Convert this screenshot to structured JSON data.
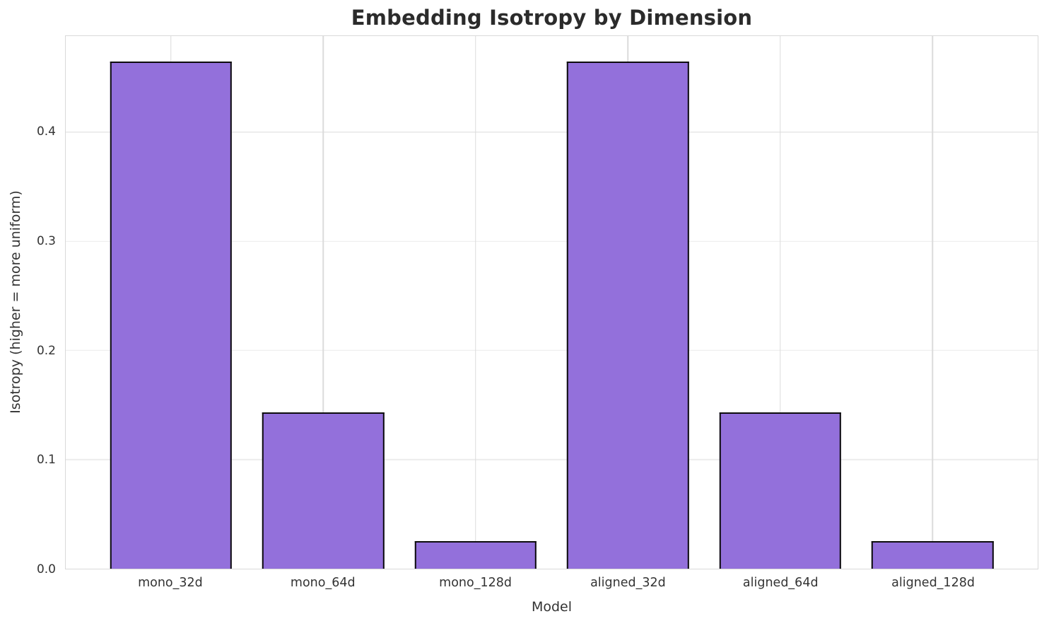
{
  "chart_data": {
    "type": "bar",
    "title": "Embedding Isotropy by Dimension",
    "xlabel": "Model",
    "ylabel": "Isotropy (higher = more uniform)",
    "categories": [
      "mono_32d",
      "mono_64d",
      "mono_128d",
      "aligned_32d",
      "aligned_64d",
      "aligned_128d"
    ],
    "values": [
      0.465,
      0.143,
      0.025,
      0.465,
      0.143,
      0.025
    ],
    "ylim": [
      0,
      0.488
    ],
    "yticks": [
      0.0,
      0.1,
      0.2,
      0.3,
      0.4
    ],
    "ytick_labels": [
      "0.0",
      "0.1",
      "0.2",
      "0.3",
      "0.4"
    ],
    "grid": "on",
    "legend": "none",
    "bar_width_fraction": 0.8,
    "x_margin_fraction": 0.69,
    "colors": {
      "bar_fill": "#9370DB",
      "bar_edge": "#0d0d0d",
      "grid_horizontal": "#ececec",
      "grid_vertical": "#dbdbdb",
      "spine": "#d9d9d9",
      "title_text": "#2b2b2b",
      "label_text": "#333333"
    }
  }
}
